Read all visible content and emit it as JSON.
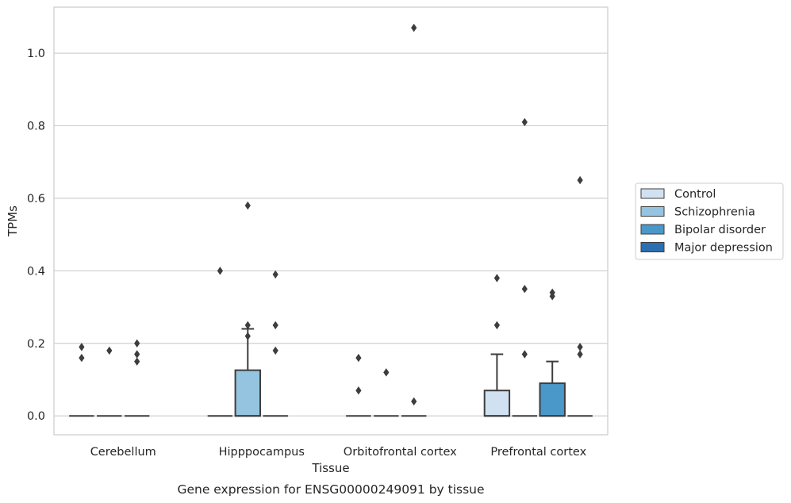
{
  "chart_data": {
    "type": "box",
    "xlabel": "Tissue",
    "ylabel": "TPMs",
    "caption": "Gene expression for ENSG00000249091 by tissue",
    "categories": [
      "Cerebellum",
      "Hipppocampus",
      "Orbitofrontal cortex",
      "Prefrontal cortex"
    ],
    "ylim": [
      -0.052,
      1.127
    ],
    "yticks": [
      0.0,
      0.2,
      0.4,
      0.6,
      0.8,
      1.0
    ],
    "ytick_labels": [
      "0.0",
      "0.2",
      "0.4",
      "0.6",
      "0.8",
      "1.0"
    ],
    "grid": true,
    "legend_position": "right",
    "series": [
      {
        "name": "Control",
        "color": "#d0e1f2",
        "boxes": [
          {
            "q1": 0,
            "median": 0,
            "q3": 0,
            "whisker_low": 0,
            "whisker_high": 0,
            "outliers": [
              0.19,
              0.16
            ]
          },
          {
            "q1": 0,
            "median": 0,
            "q3": 0,
            "whisker_low": 0,
            "whisker_high": 0,
            "outliers": [
              0.4
            ]
          },
          {
            "q1": 0,
            "median": 0,
            "q3": 0,
            "whisker_low": 0,
            "whisker_high": 0,
            "outliers": [
              0.16,
              0.07
            ]
          },
          {
            "q1": 0,
            "median": 0,
            "q3": 0.07,
            "whisker_low": 0,
            "whisker_high": 0.17,
            "outliers": [
              0.38,
              0.25
            ]
          }
        ]
      },
      {
        "name": "Schizophrenia",
        "color": "#94c4df",
        "boxes": [
          {
            "q1": 0,
            "median": 0,
            "q3": 0,
            "whisker_low": 0,
            "whisker_high": 0,
            "outliers": [
              0.18
            ]
          },
          {
            "q1": 0,
            "median": 0,
            "q3": 0.126,
            "whisker_low": 0,
            "whisker_high": 0.24,
            "outliers": [
              0.58,
              0.25,
              0.22
            ]
          },
          {
            "q1": 0,
            "median": 0,
            "q3": 0,
            "whisker_low": 0,
            "whisker_high": 0,
            "outliers": [
              0.12
            ]
          },
          {
            "q1": 0,
            "median": 0,
            "q3": 0,
            "whisker_low": 0,
            "whisker_high": 0,
            "outliers": [
              0.81,
              0.35,
              0.17
            ]
          }
        ]
      },
      {
        "name": "Bipolar disorder",
        "color": "#4a98c9",
        "boxes": [
          {
            "q1": 0,
            "median": 0,
            "q3": 0,
            "whisker_low": 0,
            "whisker_high": 0,
            "outliers": [
              0.2,
              0.17,
              0.15
            ]
          },
          {
            "q1": 0,
            "median": 0,
            "q3": 0,
            "whisker_low": 0,
            "whisker_high": 0,
            "outliers": [
              0.39,
              0.25,
              0.18
            ]
          },
          {
            "q1": 0,
            "median": 0,
            "q3": 0,
            "whisker_low": 0,
            "whisker_high": 0,
            "outliers": [
              1.07,
              0.04
            ]
          },
          {
            "q1": 0,
            "median": 0,
            "q3": 0.09,
            "whisker_low": 0,
            "whisker_high": 0.15,
            "outliers": [
              0.34,
              0.33
            ]
          }
        ]
      },
      {
        "name": "Major depression",
        "color": "#2b6fb0",
        "boxes": [
          null,
          null,
          null,
          {
            "q1": 0,
            "median": 0,
            "q3": 0,
            "whisker_low": 0,
            "whisker_high": 0,
            "outliers": [
              0.65,
              0.19,
              0.17
            ]
          }
        ]
      }
    ]
  }
}
